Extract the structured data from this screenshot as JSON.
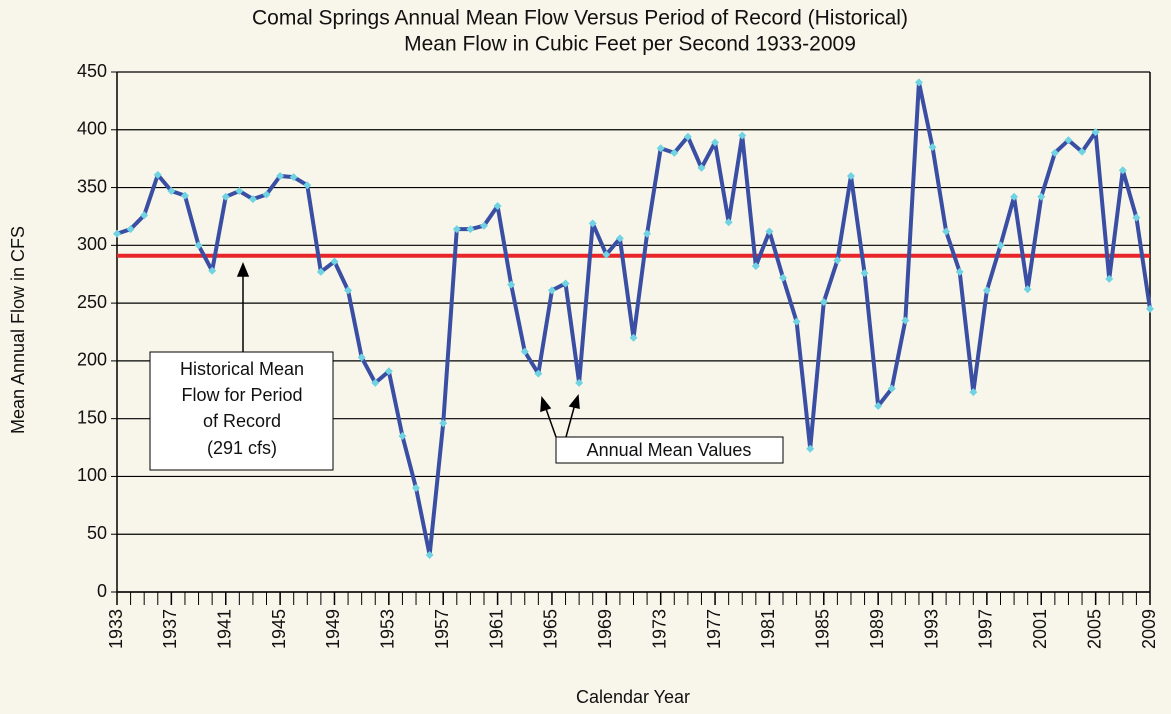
{
  "chart_data": {
    "type": "line",
    "title": "Comal Springs Annual Mean Flow Versus Period of Record (Historical)",
    "subtitle": "Mean Flow in Cubic Feet per Second 1933-2009",
    "x_label": "Calendar Year",
    "y_label": "Mean Annual Flow in CFS",
    "x": [
      1933,
      1934,
      1935,
      1936,
      1937,
      1938,
      1939,
      1940,
      1941,
      1942,
      1943,
      1944,
      1945,
      1946,
      1947,
      1948,
      1949,
      1950,
      1951,
      1952,
      1953,
      1954,
      1955,
      1956,
      1957,
      1958,
      1959,
      1960,
      1961,
      1962,
      1963,
      1964,
      1965,
      1966,
      1967,
      1968,
      1969,
      1970,
      1971,
      1972,
      1973,
      1974,
      1975,
      1976,
      1977,
      1978,
      1979,
      1980,
      1981,
      1982,
      1983,
      1984,
      1985,
      1986,
      1987,
      1988,
      1989,
      1990,
      1991,
      1992,
      1993,
      1994,
      1995,
      1996,
      1997,
      1998,
      1999,
      2000,
      2001,
      2002,
      2003,
      2004,
      2005,
      2006,
      2007,
      2008,
      2009
    ],
    "series": [
      {
        "name": "Annual Mean Values",
        "color": "#3a4fa3",
        "marker_color": "#6fd3e3",
        "values": [
          310,
          314,
          326,
          361,
          347,
          343,
          300,
          278,
          342,
          347,
          340,
          344,
          360,
          359,
          352,
          277,
          286,
          261,
          203,
          181,
          191,
          135,
          90,
          32,
          146,
          314,
          314,
          317,
          334,
          266,
          208,
          189,
          261,
          267,
          181,
          319,
          292,
          306,
          220,
          310,
          384,
          380,
          394,
          367,
          389,
          320,
          395,
          282,
          312,
          272,
          234,
          124,
          251,
          287,
          360,
          276,
          161,
          176,
          235,
          441,
          385,
          312,
          277,
          173,
          261,
          300,
          342,
          262,
          342,
          380,
          391,
          381,
          398,
          271,
          365,
          324,
          245
        ]
      }
    ],
    "mean_line": {
      "value": 291,
      "color": "#e8262a"
    },
    "annotations": {
      "mean_box": [
        "Historical Mean",
        "Flow for Period",
        "of Record",
        "(291 cfs)"
      ],
      "values_box": "Annual Mean Values"
    },
    "xlim": [
      1933,
      2009
    ],
    "xticks": [
      1933,
      1937,
      1941,
      1945,
      1949,
      1953,
      1957,
      1961,
      1965,
      1969,
      1973,
      1977,
      1981,
      1985,
      1989,
      1993,
      1997,
      2001,
      2005,
      2009
    ],
    "ylim": [
      0,
      450
    ],
    "yticks": [
      0,
      50,
      100,
      150,
      200,
      250,
      300,
      350,
      400,
      450
    ],
    "grid": true
  }
}
